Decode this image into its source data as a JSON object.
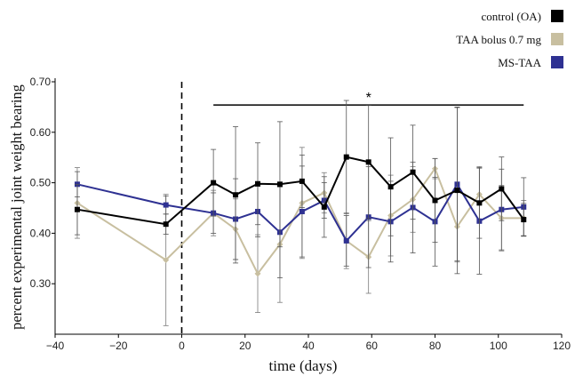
{
  "chart_data": {
    "type": "line",
    "title": "",
    "xlabel": "time (days)",
    "ylabel": "percent experimental joint weight bearing",
    "xlim": [
      -40,
      120
    ],
    "ylim": [
      0.2,
      0.7
    ],
    "x_ticks": [
      -40,
      -20,
      0,
      20,
      40,
      60,
      80,
      100,
      120
    ],
    "x_tick_labels": [
      "−40",
      "−20",
      "0",
      "20",
      "40",
      "60",
      "80",
      "100",
      "120"
    ],
    "y_ticks": [
      0.3,
      0.4,
      0.5,
      0.6,
      0.7
    ],
    "y_tick_labels": [
      "0.30",
      "0.40",
      "0.50",
      "0.60",
      "0.70"
    ],
    "grid": false,
    "legend_position": "top-right",
    "reference_line_x": 0,
    "significance": {
      "label": "*",
      "x_start": 10,
      "x_end": 108,
      "y": 0.654
    },
    "series": [
      {
        "name": "control (OA)",
        "color": "#000000",
        "x": [
          -33,
          -5,
          10,
          17,
          24,
          31,
          38,
          45,
          52,
          59,
          66,
          73,
          80,
          87,
          94,
          101,
          108
        ],
        "y": [
          0.447,
          0.418,
          0.5,
          0.476,
          0.498,
          0.497,
          0.503,
          0.452,
          0.551,
          0.541,
          0.492,
          0.521,
          0.465,
          0.485,
          0.46,
          0.488,
          0.427
        ],
        "err": [
          0.05,
          0.02,
          0.066,
          0.135,
          0.081,
          0.124,
          0.052,
          0.06,
          0.112,
          0.112,
          0.097,
          0.093,
          0.083,
          0.165,
          0.07,
          0.063,
          0.032
        ]
      },
      {
        "name": "TAA  bolus 0.7 mg",
        "color": "#c8bfa0",
        "x": [
          -33,
          -5,
          10,
          17,
          24,
          31,
          38,
          45,
          52,
          59,
          66,
          73,
          80,
          87,
          94,
          101,
          108
        ],
        "y": [
          0.46,
          0.347,
          0.44,
          0.408,
          0.32,
          0.378,
          0.46,
          0.48,
          0.385,
          0.353,
          0.435,
          0.467,
          0.528,
          0.413,
          0.477,
          0.43,
          0.43
        ],
        "err": [
          0.07,
          0.13,
          0.045,
          0.06,
          0.077,
          0.115,
          0.11,
          0.04,
          0.055,
          0.072,
          0.08,
          0.065,
          0.02,
          0.07,
          0.055,
          0.065,
          0.035
        ]
      },
      {
        "name": "MS-TAA",
        "color": "#2e3192",
        "x": [
          -33,
          -5,
          10,
          17,
          24,
          31,
          38,
          45,
          52,
          59,
          66,
          73,
          80,
          87,
          94,
          101,
          108
        ],
        "y": [
          0.497,
          0.456,
          0.44,
          0.428,
          0.443,
          0.402,
          0.443,
          0.465,
          0.385,
          0.432,
          0.423,
          0.451,
          0.423,
          0.497,
          0.424,
          0.447,
          0.452
        ],
        "err": [
          0.025,
          0.018,
          0.04,
          0.08,
          0.05,
          0.09,
          0.09,
          0.035,
          0.05,
          0.1,
          0.08,
          0.09,
          0.088,
          0.152,
          0.105,
          0.08,
          0.058
        ]
      }
    ]
  }
}
